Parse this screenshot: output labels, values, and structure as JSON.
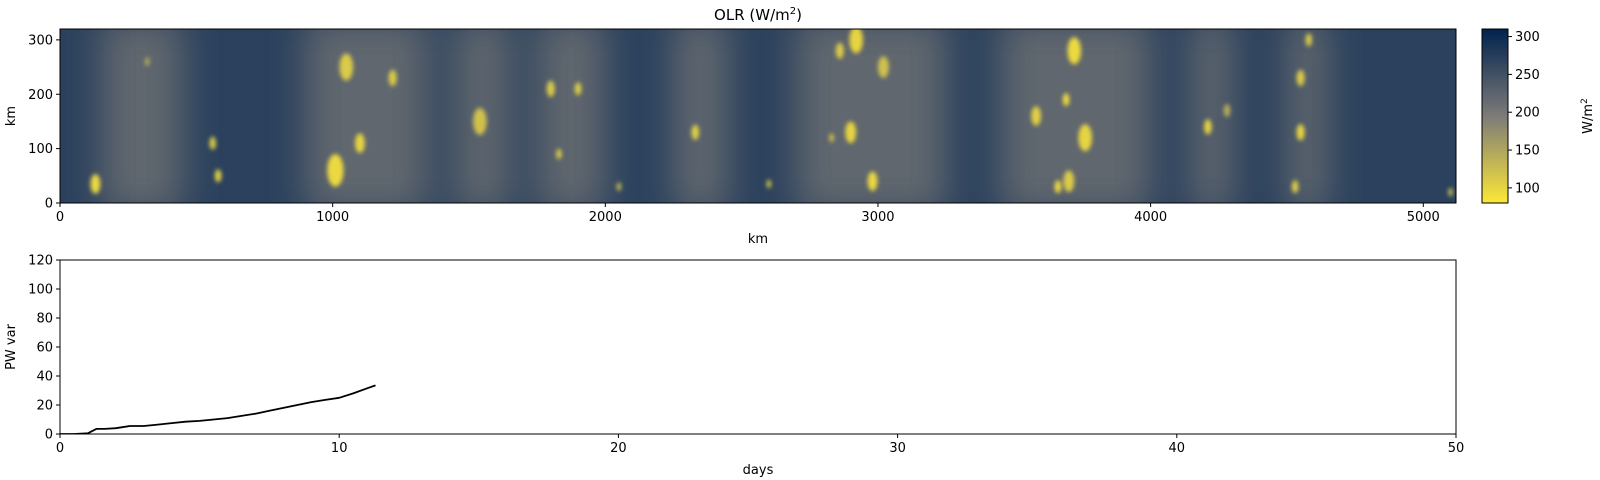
{
  "chart_data": [
    {
      "type": "heatmap",
      "title": "OLR (W/m",
      "title_sup": "2",
      "title_end": ")",
      "xlabel": "km",
      "ylabel": "km",
      "xlim": [
        0,
        5120
      ],
      "ylim": [
        0,
        320
      ],
      "xticks": [
        "0",
        "1000",
        "2000",
        "3000",
        "4000",
        "5000"
      ],
      "yticks": [
        "0",
        "100",
        "200",
        "300"
      ],
      "colormap": "cividis_r",
      "colors": {
        "high": "#00224e",
        "mid": "#7c7b78",
        "low": "#fde737"
      },
      "colorbar": {
        "label": "W/m",
        "label_sup": "2",
        "range": [
          80,
          310
        ],
        "ticks": [
          "100",
          "150",
          "200",
          "250",
          "300"
        ]
      },
      "background_value": 270,
      "convective_bands_km": [
        [
          150,
          450
        ],
        [
          900,
          1350
        ],
        [
          1450,
          1650
        ],
        [
          1750,
          2000
        ],
        [
          2250,
          2450
        ],
        [
          2700,
          3250
        ],
        [
          3450,
          4000
        ],
        [
          4150,
          4300
        ],
        [
          4500,
          4650
        ]
      ],
      "cells": [
        [
          130,
          35,
          18,
          95
        ],
        [
          580,
          50,
          12,
          100
        ],
        [
          560,
          110,
          12,
          110
        ],
        [
          1010,
          60,
          30,
          95
        ],
        [
          1100,
          110,
          18,
          100
        ],
        [
          1050,
          250,
          25,
          110
        ],
        [
          1220,
          230,
          15,
          110
        ],
        [
          1540,
          150,
          25,
          120
        ],
        [
          1830,
          90,
          10,
          110
        ],
        [
          1900,
          210,
          12,
          105
        ],
        [
          1800,
          210,
          15,
          110
        ],
        [
          2050,
          30,
          8,
          120
        ],
        [
          2330,
          130,
          14,
          105
        ],
        [
          2600,
          35,
          8,
          110
        ],
        [
          2830,
          120,
          8,
          110
        ],
        [
          2900,
          130,
          20,
          100
        ],
        [
          2980,
          40,
          18,
          95
        ],
        [
          2920,
          300,
          25,
          100
        ],
        [
          2860,
          280,
          15,
          110
        ],
        [
          3020,
          250,
          20,
          120
        ],
        [
          3580,
          160,
          18,
          105
        ],
        [
          3690,
          190,
          12,
          90
        ],
        [
          3760,
          120,
          25,
          100
        ],
        [
          3720,
          280,
          25,
          95
        ],
        [
          3660,
          30,
          12,
          90
        ],
        [
          3700,
          40,
          20,
          110
        ],
        [
          4210,
          140,
          14,
          100
        ],
        [
          4280,
          170,
          12,
          140
        ],
        [
          4550,
          130,
          15,
          100
        ],
        [
          4530,
          30,
          12,
          105
        ],
        [
          4550,
          230,
          15,
          110
        ],
        [
          4580,
          300,
          12,
          110
        ],
        [
          5100,
          20,
          8,
          120
        ],
        [
          320,
          260,
          8,
          140
        ]
      ]
    },
    {
      "type": "line",
      "xlabel": "days",
      "ylabel": "PW var",
      "xlim": [
        0,
        50
      ],
      "ylim": [
        0,
        120
      ],
      "xticks": [
        "0",
        "10",
        "20",
        "30",
        "40",
        "50"
      ],
      "yticks": [
        "0",
        "20",
        "40",
        "60",
        "80",
        "100",
        "120"
      ],
      "series": [
        {
          "color": "#000000",
          "x": [
            0,
            0.5,
            1.0,
            1.3,
            1.6,
            2.0,
            2.5,
            3.0,
            3.5,
            4.0,
            4.5,
            5.0,
            5.5,
            6.0,
            6.5,
            7.0,
            7.5,
            8.0,
            8.5,
            9.0,
            9.5,
            10.0,
            10.5,
            11.0,
            11.3
          ],
          "y": [
            0,
            0,
            0.5,
            3.5,
            3.5,
            4.0,
            5.5,
            5.5,
            6.5,
            7.5,
            8.5,
            9.0,
            10.0,
            11.0,
            12.5,
            14.0,
            16.0,
            18.0,
            20.0,
            22.0,
            23.5,
            25.0,
            28.0,
            31.5,
            33.5
          ]
        }
      ]
    }
  ]
}
